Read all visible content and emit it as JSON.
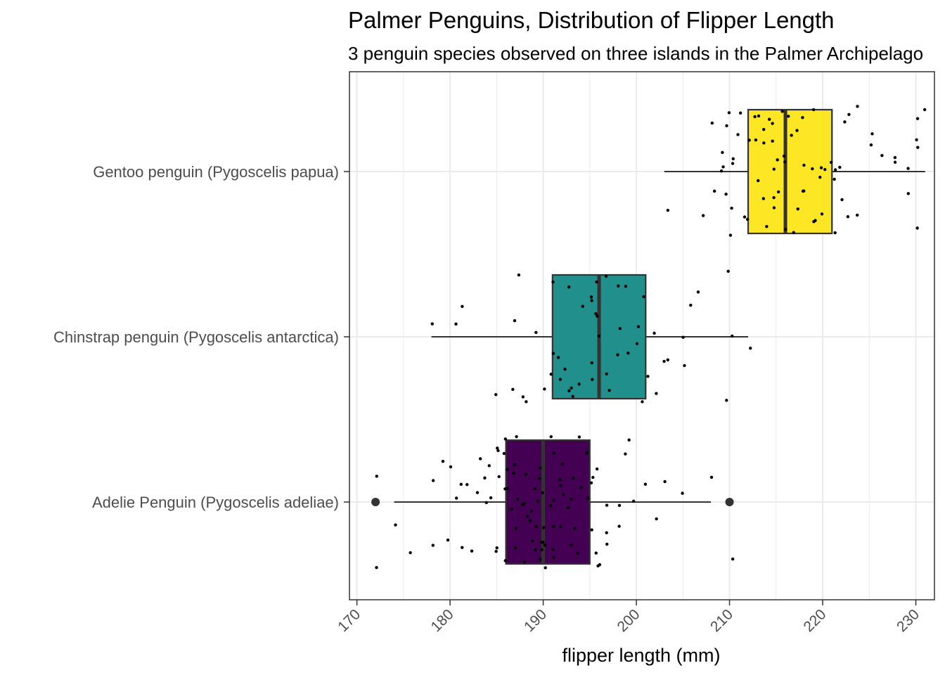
{
  "chart_data": {
    "type": "boxplot",
    "orientation": "horizontal",
    "title": "Palmer Penguins, Distribution of Flipper Length",
    "subtitle": "3 penguin species observed on three islands in the Palmer Archipelago",
    "xlabel": "flipper length (mm)",
    "ylabel": "",
    "xlim": [
      169.2,
      232
    ],
    "xticks": [
      170,
      180,
      190,
      200,
      210,
      220,
      230
    ],
    "grid": true,
    "legend": "none",
    "categories": [
      "Adelie Penguin (Pygoscelis adeliae)",
      "Chinstrap penguin (Pygoscelis antarctica)",
      "Gentoo penguin (Pygoscelis papua)"
    ],
    "boxes": [
      {
        "category": "Adelie Penguin (Pygoscelis adeliae)",
        "whisker_low": 174,
        "q1": 186,
        "median": 190,
        "q3": 195,
        "whisker_high": 208,
        "outliers": [
          172,
          210
        ],
        "color": "#440154"
      },
      {
        "category": "Chinstrap penguin (Pygoscelis antarctica)",
        "whisker_low": 178,
        "q1": 191,
        "median": 196,
        "q3": 201,
        "whisker_high": 212,
        "outliers": [],
        "color": "#21908C"
      },
      {
        "category": "Gentoo penguin (Pygoscelis papua)",
        "whisker_low": 203,
        "q1": 212,
        "median": 216,
        "q3": 221,
        "whisker_high": 231,
        "outliers": [],
        "color": "#FDE725"
      }
    ],
    "jitter_points": [
      {
        "category": "Adelie Penguin (Pygoscelis adeliae)",
        "values": [
          172,
          172,
          174,
          176,
          178,
          178,
          179,
          180,
          180,
          181,
          181,
          181,
          182,
          182,
          183,
          183,
          184,
          184,
          184,
          184,
          185,
          185,
          185,
          185,
          185,
          186,
          186,
          186,
          186,
          186,
          186,
          187,
          187,
          187,
          187,
          187,
          187,
          187,
          188,
          188,
          188,
          188,
          188,
          189,
          189,
          189,
          189,
          189,
          189,
          189,
          190,
          190,
          190,
          190,
          190,
          190,
          190,
          190,
          190,
          190,
          191,
          191,
          191,
          191,
          191,
          191,
          191,
          192,
          192,
          192,
          192,
          192,
          193,
          193,
          193,
          193,
          193,
          194,
          194,
          194,
          195,
          195,
          195,
          195,
          195,
          195,
          196,
          196,
          196,
          196,
          197,
          197,
          197,
          198,
          198,
          199,
          199,
          200,
          201,
          202,
          203,
          205,
          208,
          210
        ]
      },
      {
        "category": "Chinstrap penguin (Pygoscelis antarctica)",
        "values": [
          178,
          181,
          181,
          185,
          187,
          187,
          187,
          188,
          188,
          189,
          190,
          191,
          191,
          191,
          192,
          192,
          192,
          193,
          193,
          193,
          193,
          194,
          194,
          195,
          195,
          195,
          195,
          196,
          196,
          196,
          196,
          197,
          197,
          197,
          198,
          198,
          198,
          199,
          199,
          200,
          200,
          201,
          201,
          201,
          202,
          202,
          203,
          203,
          205,
          205,
          206,
          207,
          210,
          210,
          210,
          212
        ]
      },
      {
        "category": "Gentoo penguin (Pygoscelis papua)",
        "values": [
          203,
          207,
          208,
          208,
          209,
          209,
          209,
          210,
          210,
          210,
          210,
          210,
          210,
          210,
          211,
          211,
          212,
          212,
          212,
          213,
          213,
          213,
          213,
          214,
          214,
          214,
          214,
          214,
          215,
          215,
          215,
          215,
          215,
          215,
          215,
          216,
          216,
          216,
          216,
          216,
          217,
          217,
          217,
          217,
          218,
          218,
          218,
          218,
          219,
          219,
          219,
          219,
          220,
          220,
          220,
          220,
          221,
          221,
          221,
          221,
          222,
          222,
          222,
          223,
          223,
          224,
          224,
          225,
          225,
          226,
          228,
          228,
          229,
          229,
          230,
          230,
          230,
          230,
          231
        ]
      }
    ]
  }
}
